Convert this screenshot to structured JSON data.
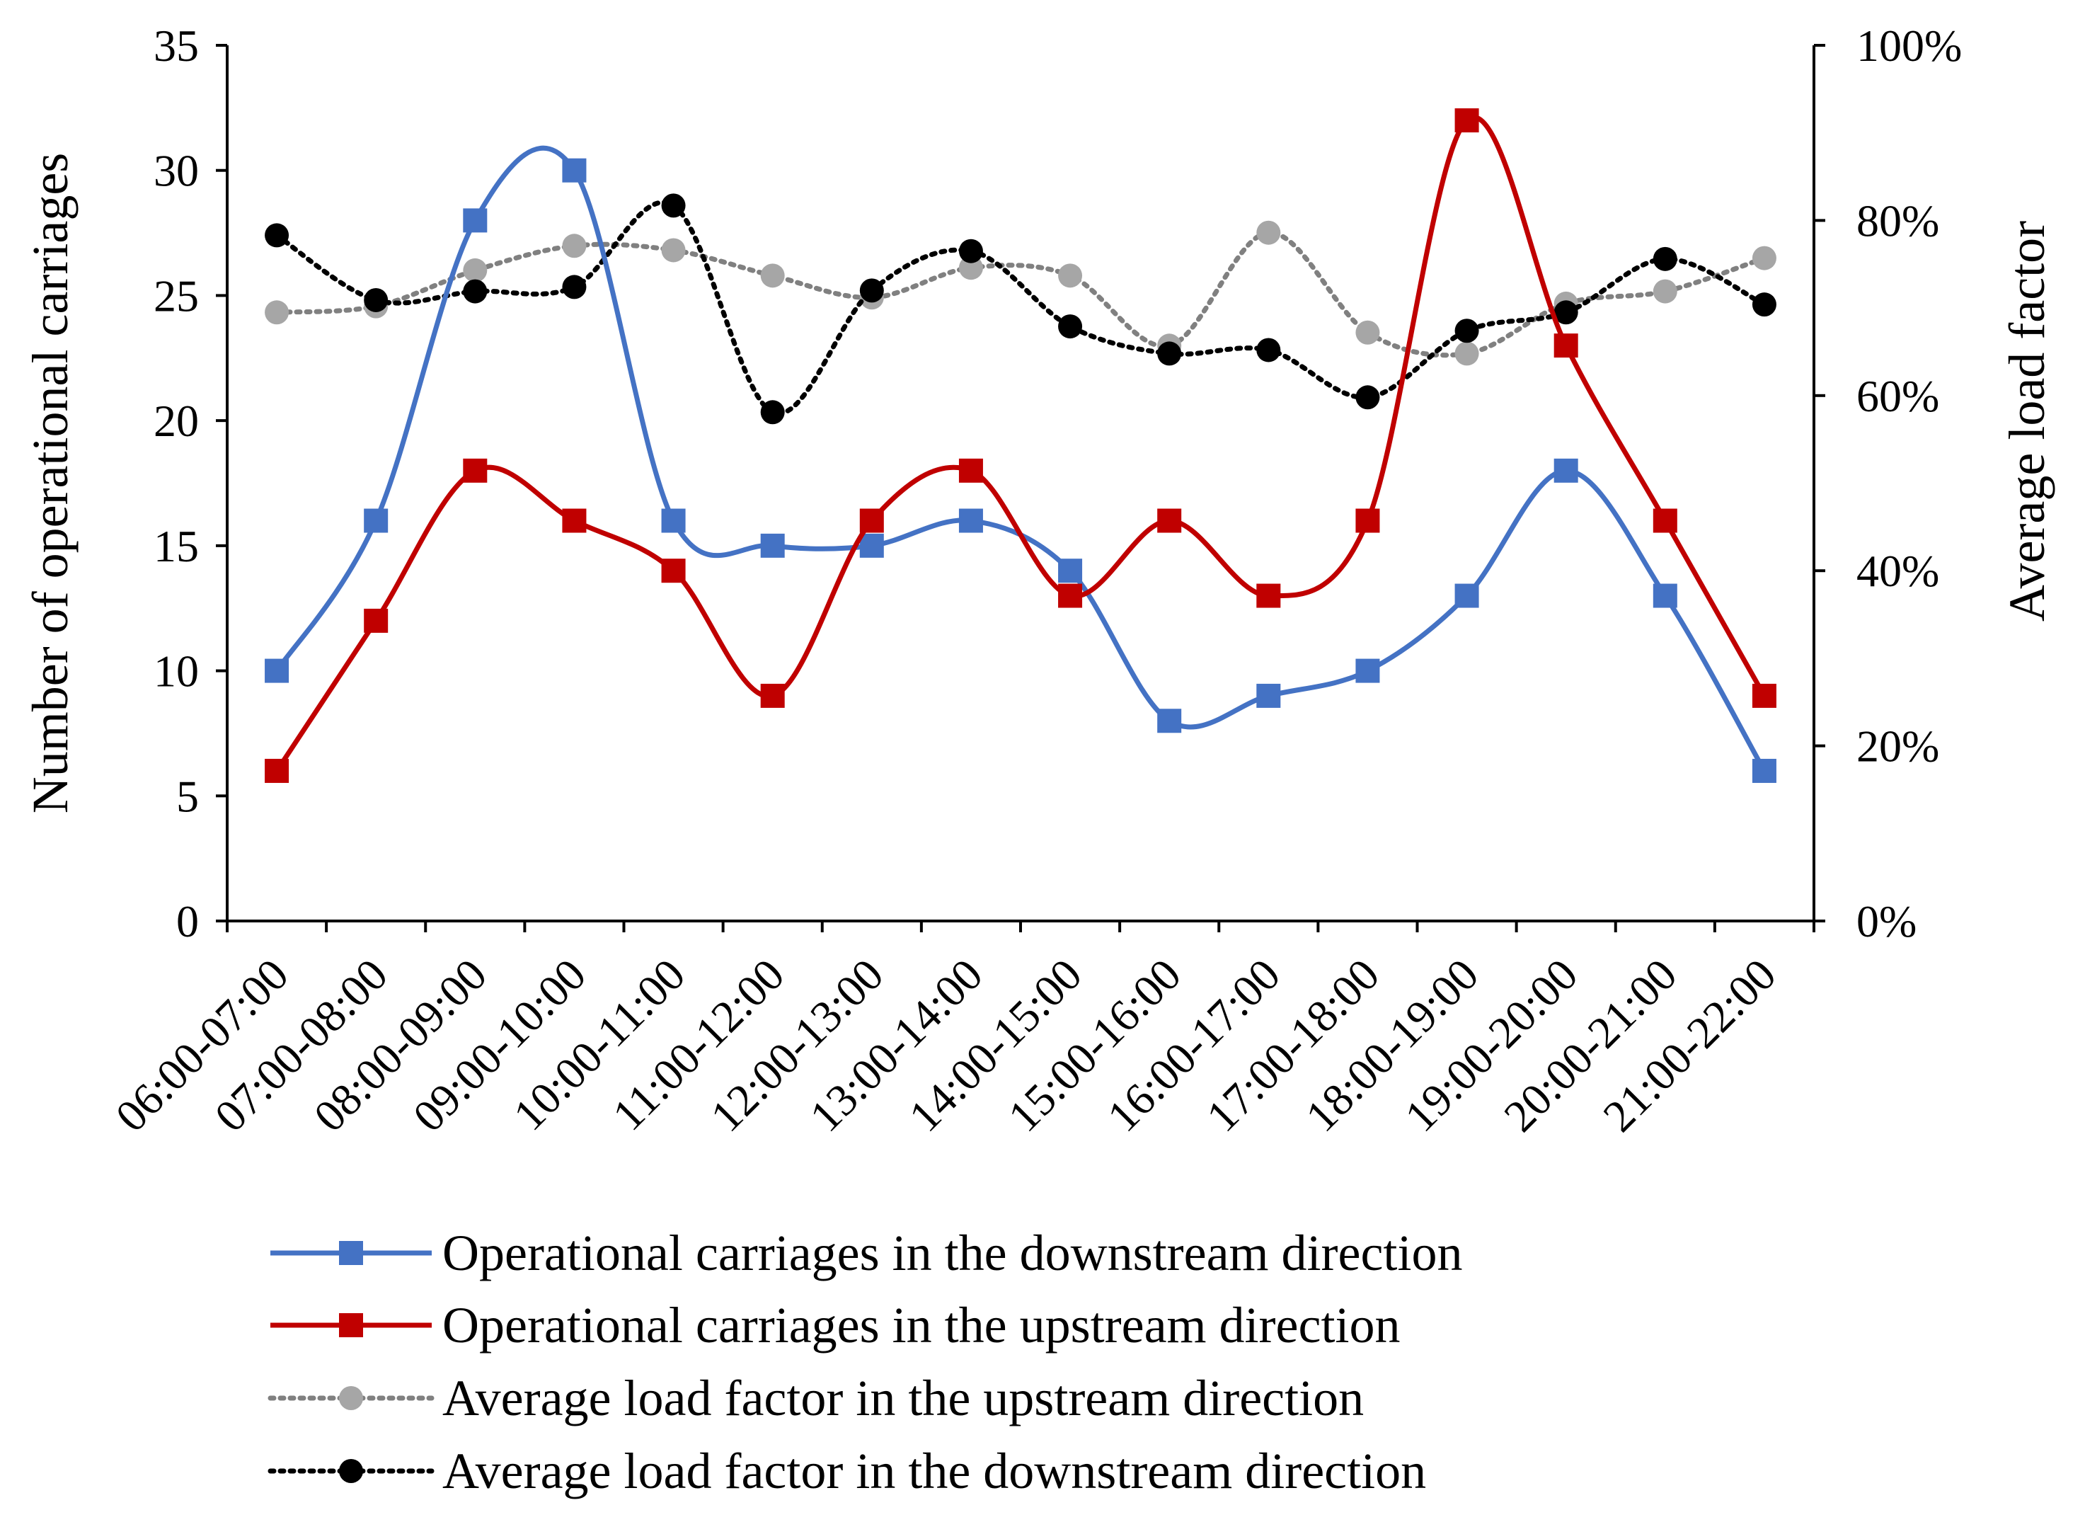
{
  "chart_data": {
    "type": "line",
    "categories": [
      "06:00-07:00",
      "07:00-08:00",
      "08:00-09:00",
      "09:00-10:00",
      "10:00-11:00",
      "11:00-12:00",
      "12:00-13:00",
      "13:00-14:00",
      "14:00-15:00",
      "15:00-16:00",
      "16:00-17:00",
      "17:00-18:00",
      "18:00-19:00",
      "19:00-20:00",
      "20:00-21:00",
      "21:00-22:00"
    ],
    "left_axis": {
      "label": "Number of  operational carriages",
      "range": [
        0,
        35
      ],
      "ticks": [
        0,
        5,
        10,
        15,
        20,
        25,
        30,
        35
      ],
      "tick_labels": [
        "0",
        "5",
        "10",
        "15",
        "20",
        "25",
        "30",
        "35"
      ]
    },
    "right_axis": {
      "label": "Average load  factor",
      "range": [
        0,
        100
      ],
      "ticks": [
        0,
        20,
        40,
        60,
        80,
        100
      ],
      "tick_labels": [
        "0%",
        "20%",
        "40%",
        "60%",
        "80%",
        "100%"
      ]
    },
    "series": [
      {
        "name": "Operational carriages in the downstream direction",
        "axis": "left",
        "style": "smooth-solid",
        "marker": "square",
        "color": "#4472C4",
        "values": [
          10,
          16,
          28,
          30,
          16,
          15,
          15,
          16,
          14,
          8,
          9,
          10,
          13,
          18,
          13,
          6
        ]
      },
      {
        "name": "Operational carriages in the upstream direction",
        "axis": "left",
        "style": "smooth-solid",
        "marker": "square",
        "color": "#C00000",
        "values": [
          6,
          12,
          18,
          16,
          14,
          9,
          16,
          18,
          13,
          16,
          13,
          16,
          32,
          23,
          16,
          9
        ]
      },
      {
        "name": "Average load factor in the upstream direction",
        "axis": "right",
        "style": "smooth-dotted",
        "marker": "circle",
        "color": "#A6A6A6",
        "line_color": "#808080",
        "values": [
          69.5,
          70.2,
          74.3,
          77.1,
          76.6,
          73.7,
          71.2,
          74.6,
          73.7,
          65.7,
          78.6,
          67.2,
          64.8,
          70.5,
          71.9,
          75.7
        ]
      },
      {
        "name": "Average load factor in the downstream direction",
        "axis": "right",
        "style": "smooth-dotted",
        "marker": "circle",
        "color": "#000000",
        "values": [
          78.3,
          70.9,
          71.9,
          72.4,
          81.7,
          58.1,
          72.0,
          76.5,
          67.9,
          64.8,
          65.2,
          59.8,
          67.4,
          69.5,
          75.6,
          70.4
        ]
      }
    ],
    "legend_position": "bottom"
  }
}
